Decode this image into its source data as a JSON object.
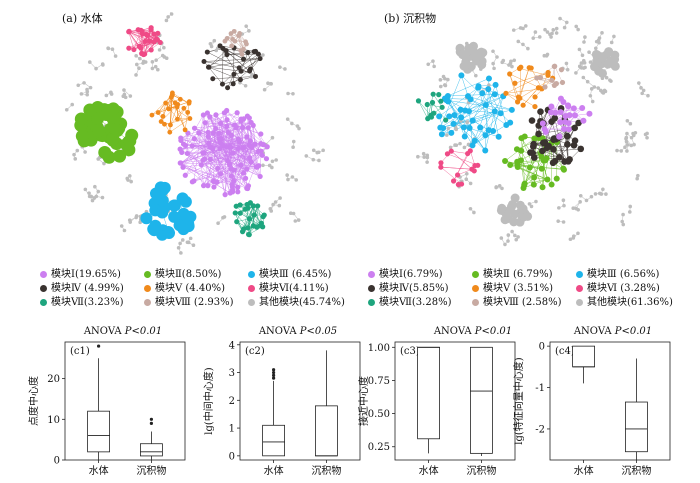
{
  "panels": {
    "a_label": "(a) 水体",
    "b_label": "(b) 沉积物"
  },
  "colors": {
    "m1": "#cc7ff0",
    "m2": "#66bb22",
    "m3": "#1eb4ea",
    "m4": "#3a3330",
    "m5": "#f08a1c",
    "m6": "#ef4a86",
    "m7": "#1ea57e",
    "m8": "#c8aaa2",
    "other": "#bdbdbd"
  },
  "legend_a": [
    [
      "模块Ⅰ(19.65%)",
      "m1"
    ],
    [
      "模块Ⅱ(8.50%)",
      "m2"
    ],
    [
      "模块Ⅲ (6.45%)",
      "m3"
    ],
    [
      "模块Ⅳ (4.99%)",
      "m4"
    ],
    [
      "模块Ⅴ (4.40%)",
      "m5"
    ],
    [
      "模块Ⅵ(4.11%)",
      "m6"
    ],
    [
      "模块Ⅶ(3.23%)",
      "m7"
    ],
    [
      "模块Ⅷ (2.93%)",
      "m8"
    ],
    [
      "其他模块(45.74%)",
      "other"
    ]
  ],
  "legend_b": [
    [
      "模块Ⅰ(6.79%)",
      "m1"
    ],
    [
      "模块Ⅱ (6.79%)",
      "m2"
    ],
    [
      "模块Ⅲ (6.56%)",
      "m3"
    ],
    [
      "模块Ⅳ(5.85%)",
      "m4"
    ],
    [
      "模块Ⅴ (3.51%)",
      "m5"
    ],
    [
      "模块Ⅵ (3.28%)",
      "m6"
    ],
    [
      "模块Ⅶ(3.28%)",
      "m7"
    ],
    [
      "模块Ⅷ (2.58%)",
      "m8"
    ],
    [
      "其他模块(61.36%)",
      "other"
    ]
  ],
  "chart_data": [
    {
      "type": "box",
      "panel": "(c1)",
      "title": "ANOVA",
      "p": "P<0.01",
      "ylabel": "点度中心度",
      "categories": [
        "水体",
        "沉积物"
      ],
      "ylim": [
        0,
        29
      ],
      "yticks": [
        0,
        10,
        20
      ],
      "boxes": [
        {
          "q1": 2,
          "median": 6,
          "q3": 12,
          "whisker_low": 0,
          "whisker_high": 25,
          "outliers": [
            28
          ]
        },
        {
          "q1": 1,
          "median": 2,
          "q3": 4,
          "whisker_low": 0,
          "whisker_high": 7,
          "outliers": [
            9,
            10
          ]
        }
      ]
    },
    {
      "type": "box",
      "panel": "(c2)",
      "title": "ANOVA",
      "p": "P<0.05",
      "ylabel": "lg(中间中心度)",
      "categories": [
        "水体",
        "沉积物"
      ],
      "ylim": [
        -0.15,
        4.1
      ],
      "yticks": [
        0,
        1,
        2,
        3,
        4
      ],
      "boxes": [
        {
          "q1": 0,
          "median": 0.5,
          "q3": 1.1,
          "whisker_low": 0,
          "whisker_high": 2.7,
          "outliers": [
            2.8,
            2.9,
            3.0,
            3.1
          ]
        },
        {
          "q1": 0,
          "median": 0,
          "q3": 1.8,
          "whisker_low": 0,
          "whisker_high": 3.8,
          "outliers": []
        }
      ]
    },
    {
      "type": "box",
      "panel": "(c3)",
      "title": "ANOVA",
      "p": "P<0.01",
      "ylabel": "接近中心度",
      "categories": [
        "水体",
        "沉积物"
      ],
      "ylim": [
        0.15,
        1.04
      ],
      "yticks": [
        0.25,
        0.5,
        0.75,
        1.0
      ],
      "ytick_labels": [
        "0.25",
        "0.50",
        "0.75",
        "1.00"
      ],
      "boxes": [
        {
          "q1": 0.31,
          "median": 1.0,
          "q3": 1.0,
          "whisker_low": 0.2,
          "whisker_high": 1.0,
          "outliers": []
        },
        {
          "q1": 0.2,
          "median": 0.67,
          "q3": 1.0,
          "whisker_low": 0.18,
          "whisker_high": 1.0,
          "outliers": []
        }
      ]
    },
    {
      "type": "box",
      "panel": "(c4)",
      "title": "ANOVA",
      "p": "P<0.01",
      "ylabel": "lg(特征向量中心度)",
      "categories": [
        "水体",
        "沉积物"
      ],
      "ylim": [
        -2.75,
        0.1
      ],
      "yticks": [
        0,
        -1,
        -2
      ],
      "boxes": [
        {
          "q1": -0.5,
          "median": -0.5,
          "q3": 0,
          "whisker_low": -0.9,
          "whisker_high": 0,
          "outliers": []
        },
        {
          "q1": -2.55,
          "median": -2.0,
          "q3": -1.35,
          "whisker_low": -2.75,
          "whisker_high": -0.3,
          "outliers": []
        }
      ]
    }
  ]
}
